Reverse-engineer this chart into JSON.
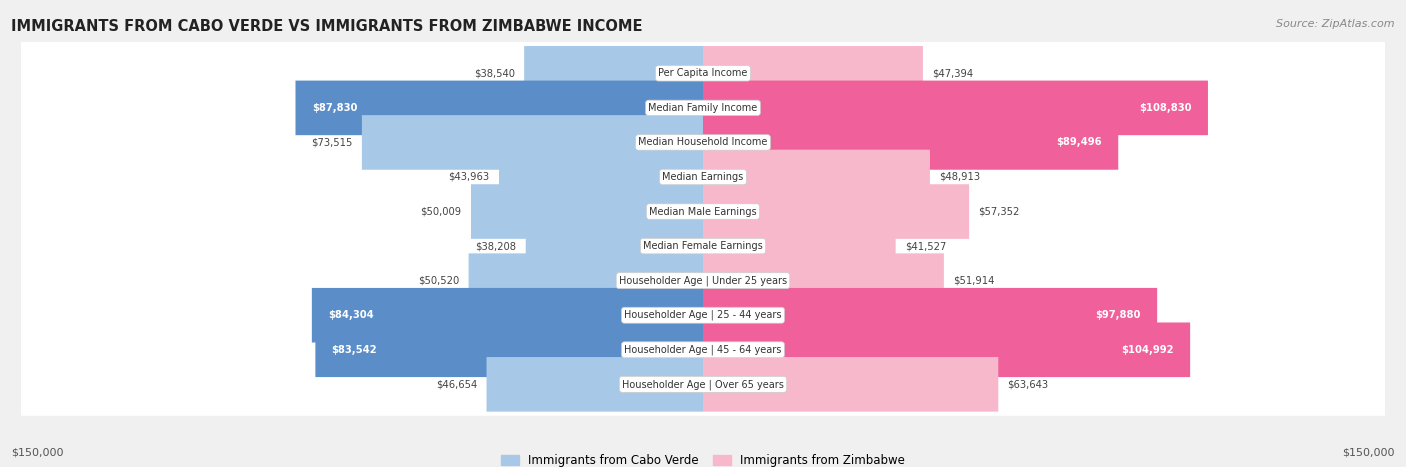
{
  "title": "IMMIGRANTS FROM CABO VERDE VS IMMIGRANTS FROM ZIMBABWE INCOME",
  "source": "Source: ZipAtlas.com",
  "categories": [
    "Per Capita Income",
    "Median Family Income",
    "Median Household Income",
    "Median Earnings",
    "Median Male Earnings",
    "Median Female Earnings",
    "Householder Age | Under 25 years",
    "Householder Age | 25 - 44 years",
    "Householder Age | 45 - 64 years",
    "Householder Age | Over 65 years"
  ],
  "cabo_verde_values": [
    38540,
    87830,
    73515,
    43963,
    50009,
    38208,
    50520,
    84304,
    83542,
    46654
  ],
  "zimbabwe_values": [
    47394,
    108830,
    89496,
    48913,
    57352,
    41527,
    51914,
    97880,
    104992,
    63643
  ],
  "cabo_verde_labels": [
    "$38,540",
    "$87,830",
    "$73,515",
    "$43,963",
    "$50,009",
    "$38,208",
    "$50,520",
    "$84,304",
    "$83,542",
    "$46,654"
  ],
  "zimbabwe_labels": [
    "$47,394",
    "$108,830",
    "$89,496",
    "$48,913",
    "$57,352",
    "$41,527",
    "$51,914",
    "$97,880",
    "$104,992",
    "$63,643"
  ],
  "cabo_verde_color_light": "#a8c8e8",
  "cabo_verde_color_dark": "#5b8ec8",
  "zimbabwe_color_light": "#f8b8cc",
  "zimbabwe_color_dark": "#f0609a",
  "highlight_threshold": 80000,
  "max_value": 150000,
  "background_color": "#f0f0f0",
  "row_bg_color": "#ffffff",
  "legend_cabo_verde": "Immigrants from Cabo Verde",
  "legend_zimbabwe": "Immigrants from Zimbabwe",
  "bottom_label_left": "$150,000",
  "bottom_label_right": "$150,000"
}
